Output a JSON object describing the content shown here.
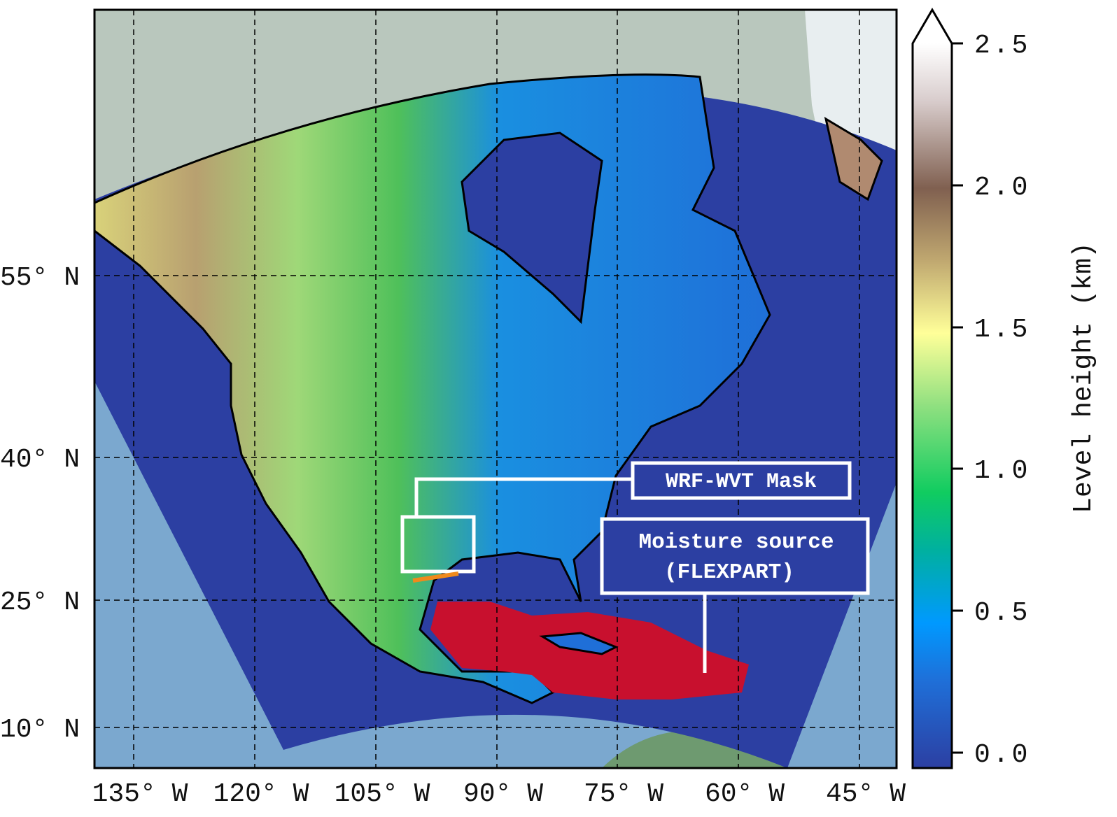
{
  "map": {
    "lat_labels": [
      "55° N",
      "40° N",
      "25° N",
      "10° N"
    ],
    "lon_labels": [
      "135° W",
      "120° W",
      "105° W",
      "90° W",
      "75° W",
      "60° W",
      "45° W"
    ],
    "annotations": {
      "mask_label": "WRF-WVT Mask",
      "source_line1": "Moisture source",
      "source_line2": "(FLEXPART)"
    },
    "colors": {
      "ocean": "#2c3fa2",
      "outside_domain": "#7ba8cf",
      "moisture_source": "#c8102e",
      "mask_line": "#f08a1c"
    }
  },
  "colorbar": {
    "label": "Level height (km)",
    "ticks": [
      "0.0",
      "0.5",
      "1.0",
      "1.5",
      "2.0",
      "2.5"
    ],
    "range": [
      0.0,
      2.5
    ],
    "extend": "max"
  }
}
